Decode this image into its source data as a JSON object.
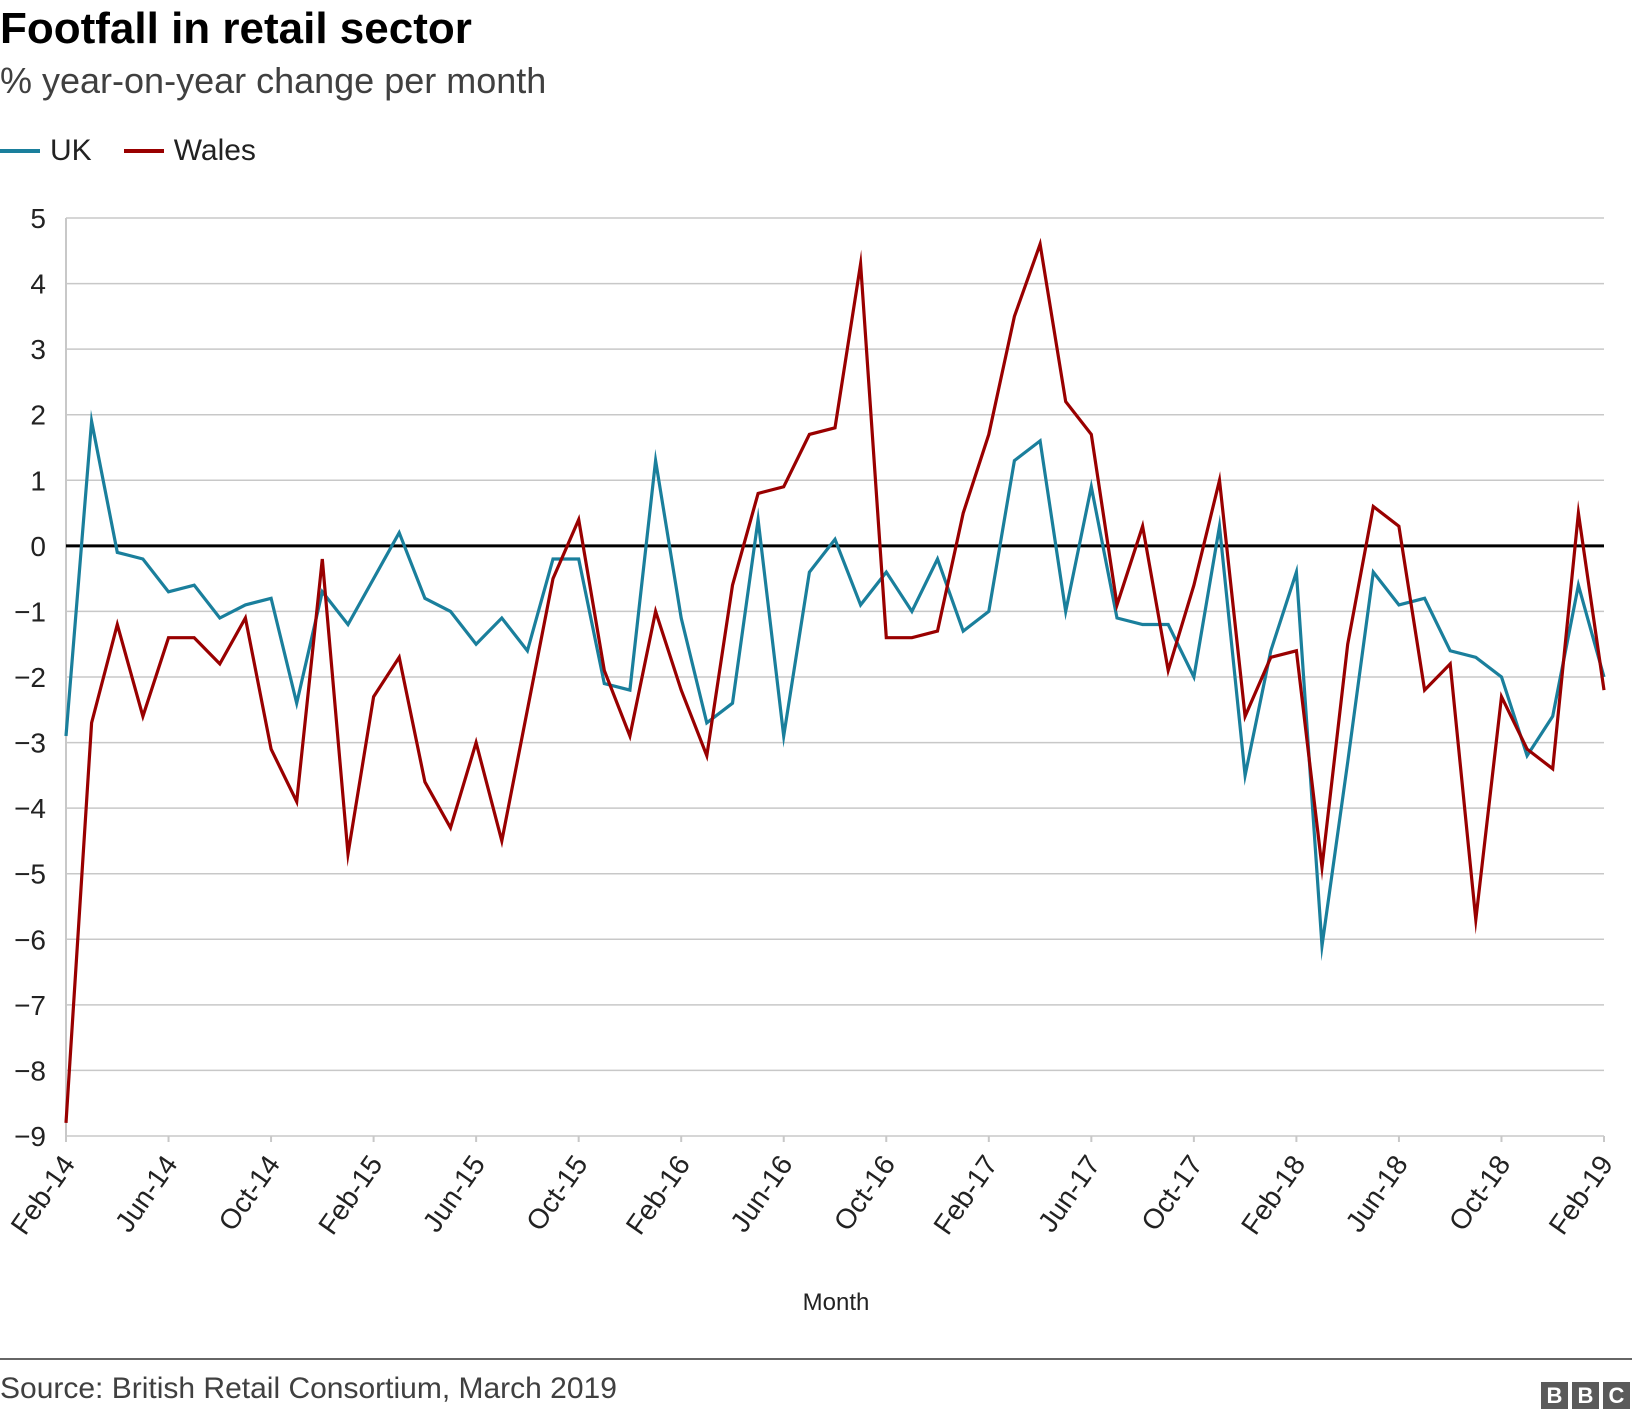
{
  "title": "Footfall in retail sector",
  "subtitle": "% year-on-year change per month",
  "source": "Source: British Retail Consortium, March 2019",
  "logo_letters": [
    "B",
    "B",
    "C"
  ],
  "colors": {
    "uk": "#1a7f9c",
    "wales": "#990000",
    "grid": "#c8c8c8",
    "zero": "#000000"
  },
  "chart_data": {
    "type": "line",
    "title": "Footfall in retail sector",
    "subtitle": "% year-on-year change per month",
    "xlabel": "Month",
    "ylabel": "",
    "ylim": [
      -9,
      5
    ],
    "y_ticks": [
      5,
      4,
      3,
      2,
      1,
      0,
      -1,
      -2,
      -3,
      -4,
      -5,
      -6,
      -7,
      -8,
      -9
    ],
    "y_tick_labels": [
      "5",
      "4",
      "3",
      "2",
      "1",
      "0",
      "−1",
      "−2",
      "−3",
      "−4",
      "−5",
      "−6",
      "−7",
      "−8",
      "−9"
    ],
    "x_tick_labels": [
      "Feb-14",
      "Jun-14",
      "Oct-14",
      "Feb-15",
      "Jun-15",
      "Oct-15",
      "Feb-16",
      "Jun-16",
      "Oct-16",
      "Feb-17",
      "Jun-17",
      "Oct-17",
      "Feb-18",
      "Jun-18",
      "Oct-18",
      "Feb-19"
    ],
    "x_tick_every": 4,
    "x_start": "Feb-14",
    "x_end": "Feb-19",
    "grid": true,
    "legend_position": "top-left",
    "series": [
      {
        "name": "UK",
        "color": "#1a7f9c",
        "values": [
          -2.9,
          1.9,
          -0.1,
          -0.2,
          -0.7,
          -0.6,
          -1.1,
          -0.9,
          -0.8,
          -2.4,
          -0.7,
          -1.2,
          -0.5,
          0.2,
          -0.8,
          -1.0,
          -1.5,
          -1.1,
          -1.6,
          -0.2,
          -0.2,
          -2.1,
          -2.2,
          1.3,
          -1.1,
          -2.7,
          -2.4,
          0.4,
          -2.9,
          -0.4,
          0.1,
          -0.9,
          -0.4,
          -1.0,
          -0.2,
          -1.3,
          -1.0,
          1.3,
          1.6,
          -1.0,
          0.9,
          -1.1,
          -1.2,
          -1.2,
          -2.0,
          0.3,
          -3.5,
          -1.6,
          -0.4,
          -6.1,
          -3.3,
          -0.4,
          -0.9,
          -0.8,
          -1.6,
          -1.7,
          -2.0,
          -3.2,
          -2.6,
          -0.6,
          -2.0
        ]
      },
      {
        "name": "Wales",
        "color": "#990000",
        "values": [
          -8.8,
          -2.7,
          -1.2,
          -2.6,
          -1.4,
          -1.4,
          -1.8,
          -1.1,
          -3.1,
          -3.9,
          -0.2,
          -4.7,
          -2.3,
          -1.7,
          -3.6,
          -4.3,
          -3.0,
          -4.5,
          -2.5,
          -0.5,
          0.4,
          -1.9,
          -2.9,
          -1.0,
          -2.2,
          -3.2,
          -0.6,
          0.8,
          0.9,
          1.7,
          1.8,
          4.3,
          -1.4,
          -1.4,
          -1.3,
          0.5,
          1.7,
          3.5,
          4.6,
          2.2,
          1.7,
          -0.9,
          0.3,
          -1.9,
          -0.6,
          1.0,
          -2.6,
          -1.7,
          -1.6,
          -4.9,
          -1.5,
          0.6,
          0.3,
          -2.2,
          -1.8,
          -5.7,
          -2.3,
          -3.1,
          -3.4,
          0.5,
          -2.2
        ]
      }
    ]
  }
}
